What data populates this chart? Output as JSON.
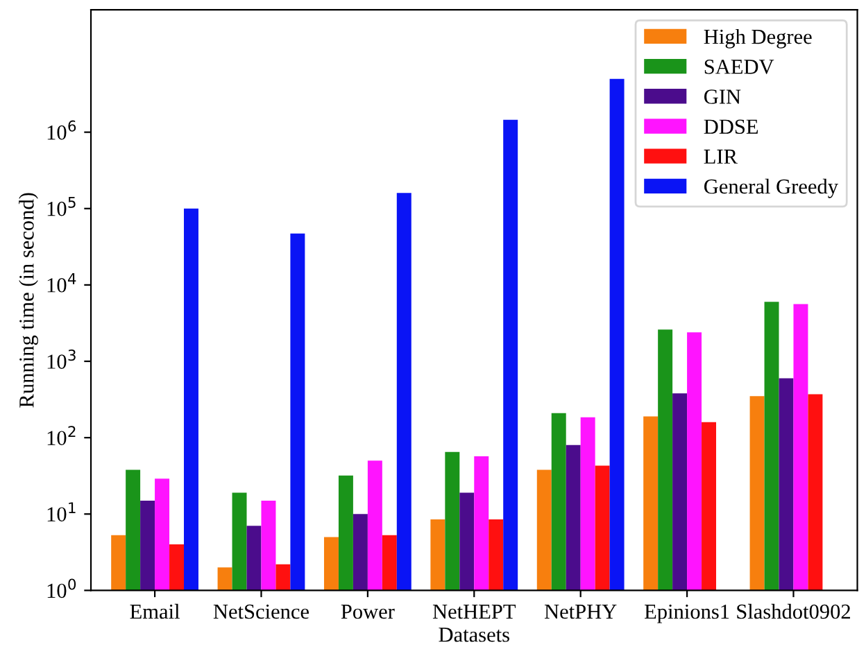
{
  "chart_data": {
    "type": "bar",
    "xlabel": "Datasets",
    "ylabel": "Running time (in second)",
    "log": true,
    "legend": "top right",
    "categories": [
      "Email",
      "NetScience",
      "Power",
      "NetHEPT",
      "NetPHY",
      "Epinions1",
      "Slashdot0902"
    ],
    "ylim": [
      1,
      40000000
    ],
    "yticks": [
      {
        "value": 1,
        "label": "10$^{0}$"
      },
      {
        "value": 10,
        "label": "10$^{1}$"
      },
      {
        "value": 100,
        "label": "10$^{2}$"
      },
      {
        "value": 1000,
        "label": "10$^{3}$"
      },
      {
        "value": 10000,
        "label": "10$^{4}$"
      },
      {
        "value": 100000,
        "label": "10$^{5}$"
      },
      {
        "value": 1000000,
        "label": "10$^{6}$"
      }
    ],
    "series": [
      {
        "name": "High Degree",
        "color": "#f77f0e",
        "values": [
          5.3,
          2,
          5,
          8.5,
          38,
          190,
          350
        ]
      },
      {
        "name": "SAEDV",
        "color": "#1a941a",
        "values": [
          38,
          19,
          32,
          65,
          210,
          2600,
          6000
        ]
      },
      {
        "name": "GIN",
        "color": "#4b0c8c",
        "values": [
          15,
          7,
          10,
          19,
          80,
          380,
          600
        ]
      },
      {
        "name": "DDSE",
        "color": "#ff14ff",
        "values": [
          29,
          15,
          50,
          57,
          185,
          2400,
          5600
        ]
      },
      {
        "name": "LIR",
        "color": "#ff1010",
        "values": [
          4,
          2.2,
          5.3,
          8.5,
          43,
          160,
          370
        ]
      },
      {
        "name": "General Greedy",
        "color": "#0a14f5",
        "values": [
          100000,
          47000,
          160000,
          1450000,
          5000000,
          null,
          null
        ]
      }
    ]
  }
}
